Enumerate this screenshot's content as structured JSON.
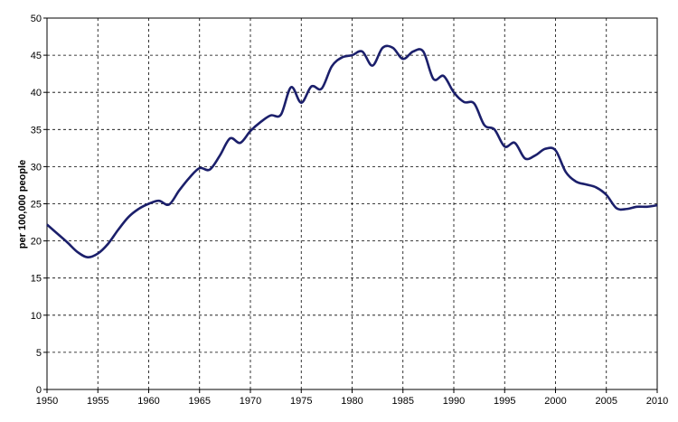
{
  "chart_data": {
    "type": "line",
    "y_label": "per 100,000 people",
    "x": [
      1950,
      1951,
      1952,
      1953,
      1954,
      1955,
      1956,
      1957,
      1958,
      1959,
      1960,
      1961,
      1962,
      1963,
      1964,
      1965,
      1966,
      1967,
      1968,
      1969,
      1970,
      1971,
      1972,
      1973,
      1974,
      1975,
      1976,
      1977,
      1978,
      1979,
      1980,
      1981,
      1982,
      1983,
      1984,
      1985,
      1986,
      1987,
      1988,
      1989,
      1990,
      1991,
      1992,
      1993,
      1994,
      1995,
      1996,
      1997,
      1998,
      1999,
      2000,
      2001,
      2002,
      2003,
      2004,
      2005,
      2006,
      2007,
      2008,
      2009,
      2010
    ],
    "series": [
      {
        "color": "#1b1f6b",
        "values": [
          22.2,
          21,
          19.8,
          18.5,
          17.8,
          18.3,
          19.6,
          21.5,
          23.2,
          24.3,
          25,
          25.4,
          24.9,
          26.8,
          28.5,
          29.8,
          29.6,
          31.5,
          33.8,
          33.2,
          34.8,
          36,
          36.9,
          37,
          40.7,
          38.6,
          40.8,
          40.5,
          43.5,
          44.7,
          45,
          45.5,
          43.6,
          46,
          46,
          44.5,
          45.5,
          45.5,
          41.8,
          42.2,
          40,
          38.7,
          38.5,
          35.6,
          35,
          32.7,
          33.2,
          31.1,
          31.5,
          32.4,
          32.2,
          29.3,
          28,
          27.6,
          27.2,
          26.2,
          24.4,
          24.3,
          24.6,
          24.6,
          24.8
        ]
      }
    ],
    "xlim": [
      1950,
      2010
    ],
    "xticks": [
      1950,
      1955,
      1960,
      1965,
      1970,
      1975,
      1980,
      1985,
      1990,
      1995,
      2000,
      2005,
      2010
    ],
    "ylim": [
      0,
      50
    ],
    "yticks": [
      0,
      5,
      10,
      15,
      20,
      25,
      30,
      35,
      40,
      45,
      50
    ],
    "grid": true
  }
}
